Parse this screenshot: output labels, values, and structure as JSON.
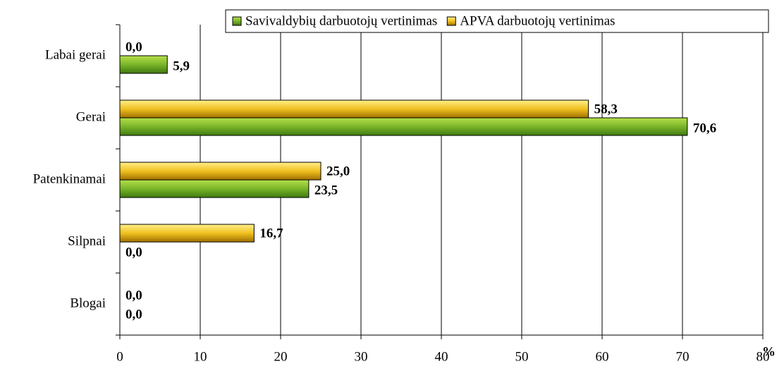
{
  "chart_data": {
    "type": "bar",
    "orientation": "horizontal",
    "categories": [
      "Labai gerai",
      "Gerai",
      "Patenkinamai",
      "Silpnai",
      "Blogai"
    ],
    "series": [
      {
        "name": "Savivaldybių darbuotojų vertinimas",
        "color": "#66a61e",
        "values": [
          5.9,
          70.6,
          23.5,
          0,
          0
        ],
        "value_labels": [
          "5,9",
          "70,6",
          "23,5",
          "0,0",
          "0,0"
        ]
      },
      {
        "name": "APVA darbuotojų vertinimas",
        "color": "#e6b000",
        "values": [
          0,
          58.3,
          25,
          16.7,
          0
        ],
        "value_labels": [
          "0,0",
          "58,3",
          "25,0",
          "16,7",
          "0,0"
        ]
      }
    ],
    "x_label": "%",
    "xlim": [
      0,
      80
    ],
    "xticks": [
      0,
      10,
      20,
      30,
      40,
      50,
      60,
      70,
      80
    ],
    "grid": true,
    "legend": "top-right"
  }
}
